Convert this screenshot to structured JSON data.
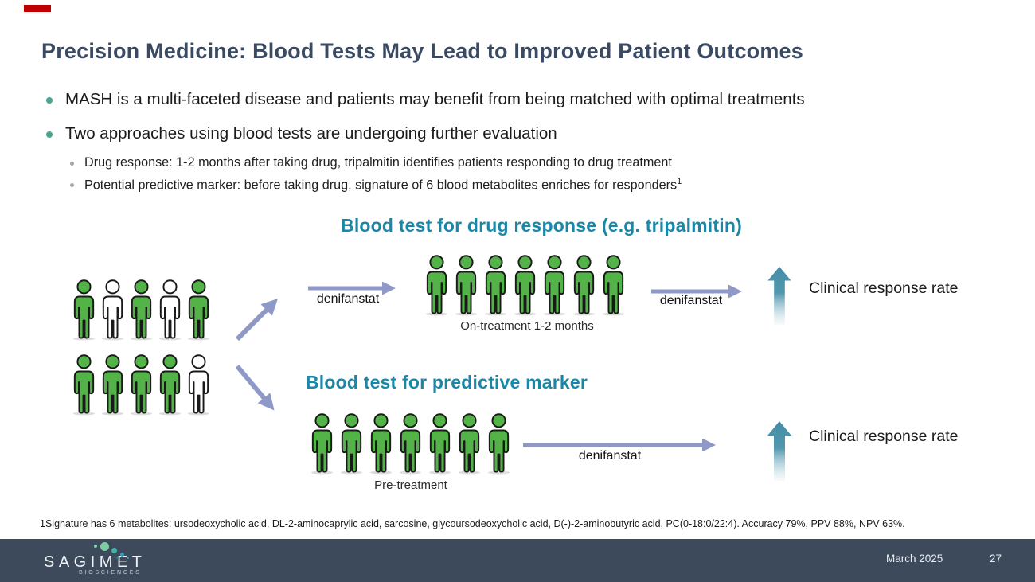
{
  "colors": {
    "title": "#3A4A63",
    "heading_teal": "#1987A8",
    "green": "#54B348",
    "white": "#FFFFFF",
    "flow_arrow": "#8E99C8",
    "up_arrow": "#4790AA",
    "footer_bg": "#3D4A5C",
    "bullet_dot": "#4BA591",
    "sub_bullet_dot": "#A6A6A6",
    "red_tab": "#C00000"
  },
  "header": {
    "title": "Precision Medicine: Blood Tests May Lead to Improved Patient Outcomes"
  },
  "bullets": [
    {
      "text": "MASH is a multi-faceted disease and patients may benefit from being matched with optimal treatments"
    },
    {
      "text": "Two approaches using blood tests are undergoing further evaluation"
    }
  ],
  "sub_bullets": [
    {
      "text": "Drug response: 1-2 months after taking drug, tripalmitin identifies patients responding to drug treatment",
      "sup": ""
    },
    {
      "text": "Potential predictive marker: before taking drug, signature of 6 blood metabolites enriches for responders",
      "sup": "1"
    }
  ],
  "diagram": {
    "top_flow": {
      "heading": "Blood test for drug response (e.g. tripalmitin)",
      "arrow1_label": "denifanstat",
      "arrow2_label": "denifanstat",
      "group_label": "On-treatment 1-2 months",
      "outcome": "Clinical response rate"
    },
    "bottom_flow": {
      "heading": "Blood test for predictive marker",
      "arrow_label": "denifanstat",
      "group_label": "Pre-treatment",
      "outcome": "Clinical response rate"
    },
    "groups": {
      "baseline": [
        [
          "green",
          "white",
          "green",
          "white",
          "green"
        ],
        [
          "green",
          "green",
          "green",
          "green",
          "white"
        ]
      ],
      "on_treatment": [
        [
          "green",
          "green",
          "green",
          "green",
          "green",
          "green",
          "green"
        ]
      ],
      "pre_treatment": [
        [
          "green",
          "green",
          "green",
          "green",
          "green",
          "green",
          "green"
        ]
      ]
    }
  },
  "footnote": {
    "marker": "1",
    "text": "Signature has 6 metabolites: ursodeoxycholic acid, DL-2-aminocaprylic acid, sarcosine, glycoursodeoxycholic acid, D(-)-2-aminobutyric acid, PC(0-18:0/22:4). Accuracy 79%, PPV 88%, NPV 63%."
  },
  "footer": {
    "brand": "SAGIMET",
    "brand_sub": "BIOSCIENCES",
    "date": "March 2025",
    "page_number": "27"
  }
}
